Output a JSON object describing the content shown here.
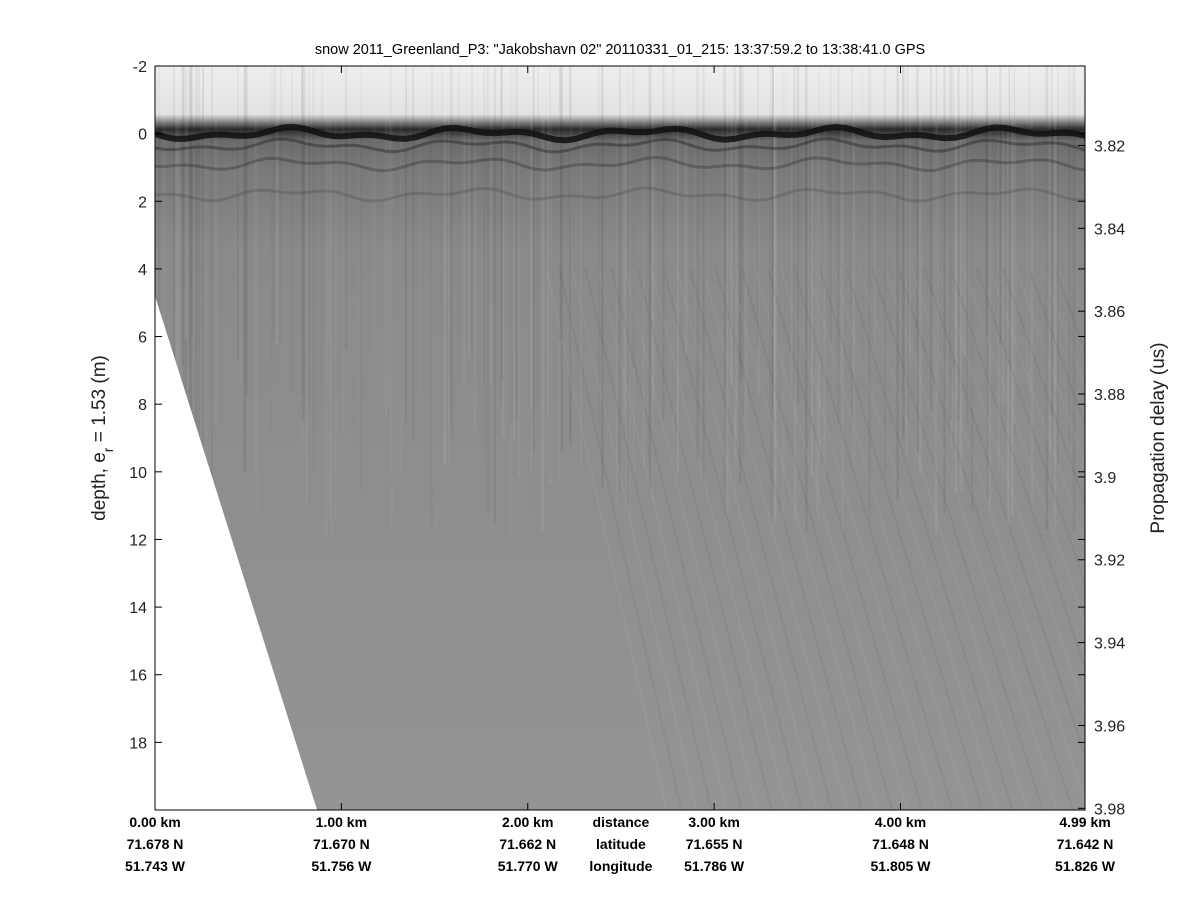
{
  "chart_data": {
    "type": "heatmap",
    "title": "snow 2011_Greenland_P3: \"Jakobshavn 02\"  20110331_01_215: 13:37:59.2 to 13:38:41.0 GPS",
    "ylabel_left_prefix": "depth, e",
    "ylabel_left_subscript": "r",
    "ylabel_left_suffix": " = 1.53 (m)",
    "ylabel_right": "Propagation delay (us)",
    "colormap": "gray",
    "grid": false,
    "legend": "none",
    "left_axis": {
      "ylim": [
        -2,
        20
      ],
      "reversed": true,
      "ticks": [
        -2,
        0,
        2,
        4,
        6,
        8,
        10,
        12,
        14,
        16,
        18
      ],
      "tick_labels": [
        "-2",
        "0",
        "2",
        "4",
        "6",
        "8",
        "10",
        "12",
        "14",
        "16",
        "18"
      ]
    },
    "right_axis": {
      "ticks": [
        3.82,
        3.84,
        3.86,
        3.88,
        3.9,
        3.92,
        3.94,
        3.96,
        3.98
      ],
      "tick_labels": [
        "3.82",
        "3.84",
        "3.86",
        "3.88",
        "3.9",
        "3.92",
        "3.94",
        "3.96",
        "3.98"
      ],
      "depth_at_3_82_us": 0.35,
      "depth_per_0_02_us": 2.45
    },
    "x_axis": {
      "xlim_km": [
        0,
        4.99
      ],
      "ticks_km": [
        0,
        1,
        2,
        3,
        4,
        4.99
      ],
      "row_labels": [
        "distance",
        "latitude",
        "longitude"
      ],
      "columns": [
        {
          "distance": "0.00 km",
          "latitude": "71.678 N",
          "longitude": "51.743 W"
        },
        {
          "distance": "1.00 km",
          "latitude": "71.670 N",
          "longitude": "51.756 W"
        },
        {
          "distance": "2.00 km",
          "latitude": "71.662 N",
          "longitude": "51.770 W"
        },
        {
          "distance": "3.00 km",
          "latitude": "71.655 N",
          "longitude": "51.786 W"
        },
        {
          "distance": "4.00 km",
          "latitude": "71.648 N",
          "longitude": "51.805 W"
        },
        {
          "distance": "4.99 km",
          "latitude": "71.642 N",
          "longitude": "51.826 W"
        }
      ]
    },
    "surface_depth_m": 0,
    "no_data_boundary": {
      "description_points_km_depth": [
        [
          0,
          4.8
        ],
        [
          0.87,
          20
        ]
      ]
    }
  }
}
